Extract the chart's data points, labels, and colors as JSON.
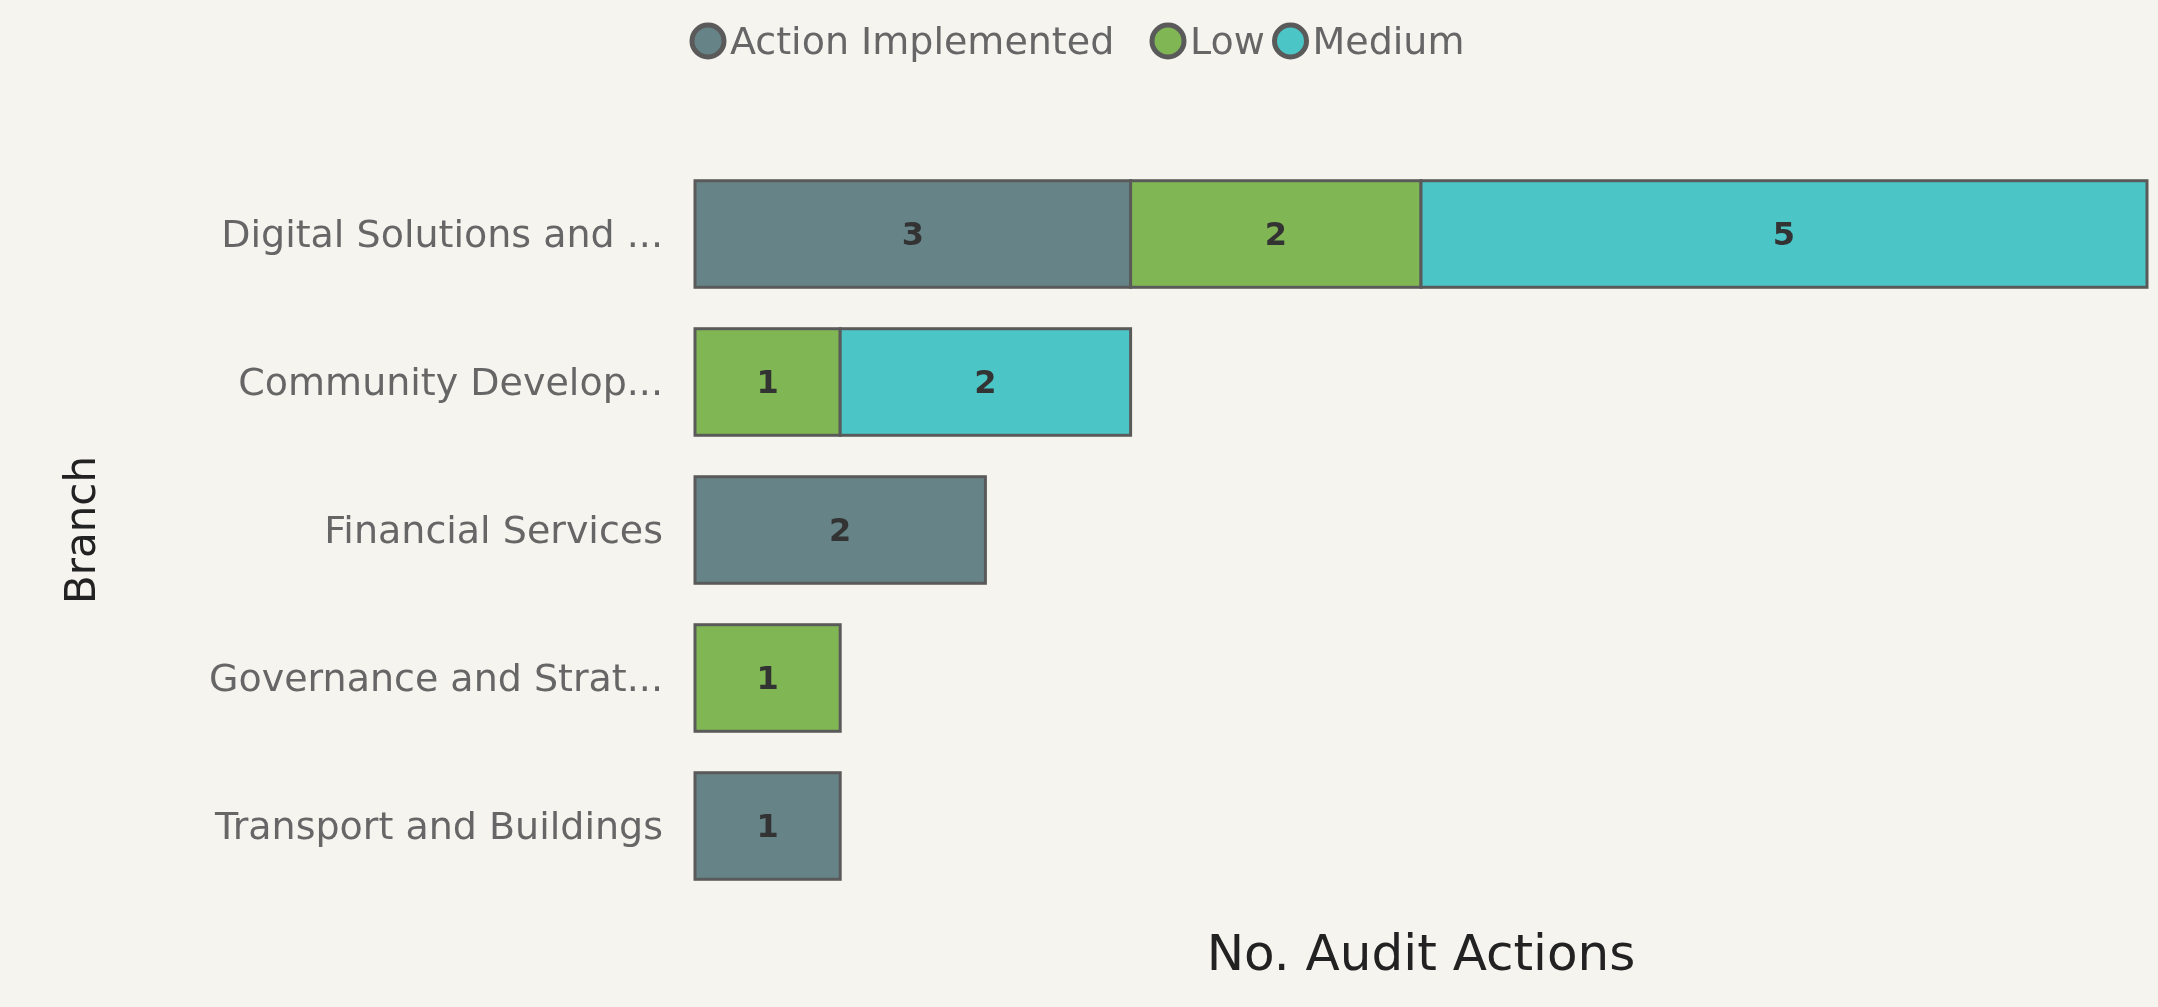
{
  "chart_data": {
    "type": "bar",
    "orientation": "horizontal",
    "stacked": true,
    "xlabel": "No. Audit Actions",
    "ylabel": "Branch",
    "categories": [
      "Digital Solutions and ...",
      "Community Develop...",
      "Financial Services",
      "Governance and Strat...",
      "Transport and Buildings"
    ],
    "series": [
      {
        "name": "Action Implemented",
        "color": "#668387",
        "values": [
          3,
          null,
          2,
          null,
          1
        ]
      },
      {
        "name": "Low",
        "color": "#80b654",
        "values": [
          2,
          1,
          null,
          1,
          null
        ]
      },
      {
        "name": "Medium",
        "color": "#4bc5c6",
        "values": [
          5,
          2,
          null,
          null,
          null
        ]
      }
    ],
    "data_labels": true,
    "legend": "top"
  }
}
